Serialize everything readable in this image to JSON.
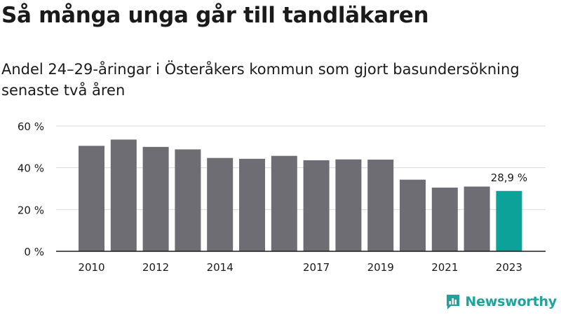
{
  "title": "Så många unga går till tandläkaren",
  "subtitle": "Andel 24–29-åringar i Österåkers kommun som gjort basundersökning senaste två åren",
  "brand": {
    "name": "Newsworthy",
    "icon": "newsworthy-logo-icon"
  },
  "colors": {
    "bar": "#6e6d73",
    "highlight": "#0ca29a",
    "grid": "#d9d9d9",
    "axis": "#1a1a1a",
    "text": "#1a1a1a"
  },
  "chart_data": {
    "type": "bar",
    "x": [
      2010,
      2011,
      2012,
      2013,
      2014,
      2015,
      2016,
      2017,
      2018,
      2019,
      2020,
      2021,
      2022,
      2023
    ],
    "values": [
      50.5,
      53.5,
      50.0,
      48.8,
      44.7,
      44.3,
      45.7,
      43.6,
      44.0,
      43.9,
      34.3,
      30.5,
      31.0,
      28.9
    ],
    "x_tick_labels": [
      "2010",
      "",
      "2012",
      "",
      "2014",
      "",
      "",
      "2017",
      "",
      "2019",
      "",
      "2021",
      "",
      "2023"
    ],
    "y_ticks": [
      "0 %",
      "20 %",
      "40 %",
      "60 %"
    ],
    "y_tick_values": [
      0,
      20,
      40,
      60
    ],
    "ylim": [
      0,
      60
    ],
    "grid": true,
    "highlight_index": 13,
    "data_label": "28,9 %",
    "xlabel": "",
    "ylabel": ""
  }
}
